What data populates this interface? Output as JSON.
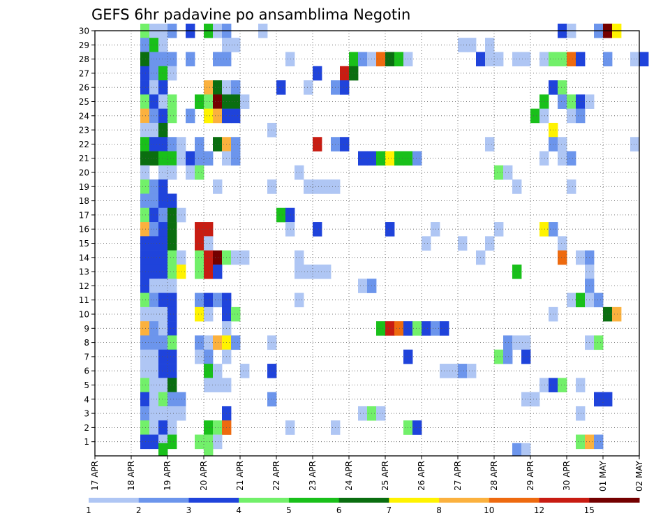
{
  "chart_data": {
    "type": "heatmap",
    "title": "GEFS 6hr padavine po ansamblima Negotin",
    "xlabel": "",
    "ylabel": "",
    "x_tick_labels": [
      "17 APR",
      "18 APR",
      "19 APR",
      "20 APR",
      "21 APR",
      "22 APR",
      "23 APR",
      "24 APR",
      "25 APR",
      "26 APR",
      "27 APR",
      "28 APR",
      "29 APR",
      "30 APR",
      "01 MAY",
      "02 MAY"
    ],
    "y_tick_labels": [
      "1",
      "2",
      "3",
      "4",
      "5",
      "6",
      "7",
      "8",
      "9",
      "10",
      "11",
      "12",
      "13",
      "14",
      "15",
      "16",
      "17",
      "18",
      "19",
      "20",
      "21",
      "22",
      "23",
      "24",
      "25",
      "26",
      "27",
      "28",
      "29",
      "30"
    ],
    "xlim": [
      "17 APR 00Z",
      "02 MAY 00Z"
    ],
    "ylim": [
      0,
      30
    ],
    "grid": true,
    "legend": {
      "position": "bottom",
      "bounds": [
        1,
        2,
        3,
        4,
        5,
        6,
        7,
        8,
        10,
        12,
        15,
        20
      ],
      "colors": [
        "#afc6f4",
        "#6c95ec",
        "#1f43db",
        "#72f06a",
        "#19c01a",
        "#0a6e10",
        "#fff300",
        "#fbb13e",
        "#ee6a0f",
        "#c81c12",
        "#740000"
      ]
    },
    "cells": [
      [
        30,
        5,
        4
      ],
      [
        30,
        6,
        1
      ],
      [
        30,
        7,
        1
      ],
      [
        30,
        8,
        2
      ],
      [
        30,
        10,
        3
      ],
      [
        30,
        12,
        5
      ],
      [
        30,
        13,
        1
      ],
      [
        30,
        14,
        2
      ],
      [
        30,
        18,
        1
      ],
      [
        30,
        51,
        3
      ],
      [
        30,
        52,
        1
      ],
      [
        30,
        55,
        2
      ],
      [
        30,
        56,
        11
      ],
      [
        30,
        57,
        7
      ],
      [
        29,
        5,
        2
      ],
      [
        29,
        6,
        5
      ],
      [
        29,
        7,
        1
      ],
      [
        29,
        14,
        1
      ],
      [
        29,
        15,
        1
      ],
      [
        29,
        40,
        1
      ],
      [
        29,
        41,
        1
      ],
      [
        29,
        43,
        1
      ],
      [
        28,
        5,
        6
      ],
      [
        28,
        6,
        2
      ],
      [
        28,
        7,
        2
      ],
      [
        28,
        8,
        2
      ],
      [
        28,
        10,
        2
      ],
      [
        28,
        13,
        2
      ],
      [
        28,
        14,
        2
      ],
      [
        28,
        21,
        1
      ],
      [
        28,
        28,
        5
      ],
      [
        28,
        29,
        2
      ],
      [
        28,
        30,
        1
      ],
      [
        28,
        31,
        9
      ],
      [
        28,
        32,
        6
      ],
      [
        28,
        33,
        5
      ],
      [
        28,
        34,
        1
      ],
      [
        28,
        42,
        3
      ],
      [
        28,
        43,
        1
      ],
      [
        28,
        44,
        1
      ],
      [
        28,
        46,
        1
      ],
      [
        28,
        47,
        1
      ],
      [
        28,
        49,
        1
      ],
      [
        28,
        50,
        4
      ],
      [
        28,
        51,
        4
      ],
      [
        28,
        52,
        9
      ],
      [
        28,
        53,
        3
      ],
      [
        28,
        56,
        2
      ],
      [
        28,
        59,
        1
      ],
      [
        28,
        60,
        3
      ],
      [
        27,
        5,
        3
      ],
      [
        27,
        6,
        2
      ],
      [
        27,
        7,
        5
      ],
      [
        27,
        8,
        1
      ],
      [
        27,
        24,
        3
      ],
      [
        27,
        27,
        10
      ],
      [
        27,
        28,
        6
      ],
      [
        26,
        5,
        3
      ],
      [
        26,
        6,
        1
      ],
      [
        26,
        7,
        3
      ],
      [
        26,
        12,
        8
      ],
      [
        26,
        13,
        6
      ],
      [
        26,
        14,
        1
      ],
      [
        26,
        15,
        2
      ],
      [
        26,
        20,
        3
      ],
      [
        26,
        23,
        1
      ],
      [
        26,
        26,
        2
      ],
      [
        26,
        27,
        3
      ],
      [
        26,
        50,
        3
      ],
      [
        26,
        51,
        4
      ],
      [
        25,
        5,
        4
      ],
      [
        25,
        6,
        3
      ],
      [
        25,
        7,
        1
      ],
      [
        25,
        8,
        4
      ],
      [
        25,
        11,
        5
      ],
      [
        25,
        12,
        4
      ],
      [
        25,
        13,
        11
      ],
      [
        25,
        14,
        6
      ],
      [
        25,
        15,
        6
      ],
      [
        25,
        16,
        1
      ],
      [
        25,
        49,
        5
      ],
      [
        25,
        51,
        2
      ],
      [
        25,
        52,
        4
      ],
      [
        25,
        53,
        3
      ],
      [
        25,
        54,
        1
      ],
      [
        24,
        5,
        8
      ],
      [
        24,
        6,
        2
      ],
      [
        24,
        7,
        3
      ],
      [
        24,
        8,
        4
      ],
      [
        24,
        10,
        2
      ],
      [
        24,
        12,
        7
      ],
      [
        24,
        13,
        8
      ],
      [
        24,
        14,
        3
      ],
      [
        24,
        15,
        3
      ],
      [
        24,
        48,
        5
      ],
      [
        24,
        49,
        1
      ],
      [
        24,
        52,
        1
      ],
      [
        24,
        53,
        2
      ],
      [
        23,
        5,
        1
      ],
      [
        23,
        6,
        1
      ],
      [
        23,
        7,
        6
      ],
      [
        23,
        19,
        1
      ],
      [
        23,
        50,
        7
      ],
      [
        22,
        5,
        5
      ],
      [
        22,
        6,
        3
      ],
      [
        22,
        7,
        3
      ],
      [
        22,
        8,
        2
      ],
      [
        22,
        9,
        1
      ],
      [
        22,
        11,
        2
      ],
      [
        22,
        13,
        6
      ],
      [
        22,
        14,
        8
      ],
      [
        22,
        15,
        2
      ],
      [
        22,
        24,
        10
      ],
      [
        22,
        26,
        2
      ],
      [
        22,
        27,
        3
      ],
      [
        22,
        43,
        1
      ],
      [
        22,
        50,
        2
      ],
      [
        22,
        51,
        1
      ],
      [
        22,
        59,
        1
      ],
      [
        21,
        5,
        6
      ],
      [
        21,
        6,
        6
      ],
      [
        21,
        7,
        5
      ],
      [
        21,
        8,
        5
      ],
      [
        21,
        9,
        1
      ],
      [
        21,
        10,
        3
      ],
      [
        21,
        11,
        2
      ],
      [
        21,
        12,
        2
      ],
      [
        21,
        14,
        1
      ],
      [
        21,
        15,
        2
      ],
      [
        21,
        29,
        3
      ],
      [
        21,
        30,
        3
      ],
      [
        21,
        31,
        5
      ],
      [
        21,
        32,
        7
      ],
      [
        21,
        33,
        5
      ],
      [
        21,
        34,
        5
      ],
      [
        21,
        35,
        2
      ],
      [
        21,
        49,
        1
      ],
      [
        21,
        51,
        1
      ],
      [
        21,
        52,
        2
      ],
      [
        20,
        5,
        1
      ],
      [
        20,
        7,
        1
      ],
      [
        20,
        8,
        1
      ],
      [
        20,
        10,
        1
      ],
      [
        20,
        11,
        4
      ],
      [
        20,
        22,
        1
      ],
      [
        20,
        44,
        4
      ],
      [
        20,
        45,
        1
      ],
      [
        19,
        5,
        4
      ],
      [
        19,
        6,
        2
      ],
      [
        19,
        7,
        3
      ],
      [
        19,
        13,
        1
      ],
      [
        19,
        19,
        1
      ],
      [
        19,
        23,
        1
      ],
      [
        19,
        24,
        1
      ],
      [
        19,
        25,
        1
      ],
      [
        19,
        26,
        1
      ],
      [
        19,
        46,
        1
      ],
      [
        19,
        52,
        1
      ],
      [
        18,
        5,
        2
      ],
      [
        18,
        6,
        2
      ],
      [
        18,
        7,
        3
      ],
      [
        18,
        8,
        3
      ],
      [
        17,
        5,
        4
      ],
      [
        17,
        6,
        3
      ],
      [
        17,
        7,
        2
      ],
      [
        17,
        8,
        6
      ],
      [
        17,
        9,
        1
      ],
      [
        17,
        20,
        5
      ],
      [
        17,
        21,
        3
      ],
      [
        16,
        5,
        8
      ],
      [
        16,
        6,
        2
      ],
      [
        16,
        7,
        3
      ],
      [
        16,
        8,
        6
      ],
      [
        16,
        11,
        10
      ],
      [
        16,
        12,
        10
      ],
      [
        16,
        21,
        1
      ],
      [
        16,
        24,
        3
      ],
      [
        16,
        32,
        3
      ],
      [
        16,
        37,
        1
      ],
      [
        16,
        44,
        1
      ],
      [
        16,
        49,
        7
      ],
      [
        16,
        50,
        2
      ],
      [
        15,
        5,
        3
      ],
      [
        15,
        6,
        3
      ],
      [
        15,
        7,
        3
      ],
      [
        15,
        8,
        6
      ],
      [
        15,
        11,
        10
      ],
      [
        15,
        12,
        1
      ],
      [
        15,
        36,
        1
      ],
      [
        15,
        40,
        1
      ],
      [
        15,
        43,
        1
      ],
      [
        15,
        51,
        1
      ],
      [
        14,
        5,
        3
      ],
      [
        14,
        6,
        3
      ],
      [
        14,
        7,
        3
      ],
      [
        14,
        8,
        4
      ],
      [
        14,
        9,
        1
      ],
      [
        14,
        11,
        4
      ],
      [
        14,
        12,
        10
      ],
      [
        14,
        13,
        11
      ],
      [
        14,
        14,
        4
      ],
      [
        14,
        15,
        1
      ],
      [
        14,
        16,
        1
      ],
      [
        14,
        22,
        1
      ],
      [
        14,
        42,
        1
      ],
      [
        14,
        51,
        9
      ],
      [
        14,
        53,
        1
      ],
      [
        14,
        54,
        2
      ],
      [
        13,
        5,
        3
      ],
      [
        13,
        6,
        3
      ],
      [
        13,
        7,
        3
      ],
      [
        13,
        8,
        4
      ],
      [
        13,
        9,
        7
      ],
      [
        13,
        11,
        4
      ],
      [
        13,
        12,
        10
      ],
      [
        13,
        13,
        3
      ],
      [
        13,
        22,
        1
      ],
      [
        13,
        23,
        1
      ],
      [
        13,
        24,
        1
      ],
      [
        13,
        25,
        1
      ],
      [
        13,
        46,
        5
      ],
      [
        13,
        54,
        1
      ],
      [
        12,
        5,
        3
      ],
      [
        12,
        6,
        1
      ],
      [
        12,
        7,
        1
      ],
      [
        12,
        8,
        1
      ],
      [
        12,
        29,
        1
      ],
      [
        12,
        30,
        2
      ],
      [
        12,
        54,
        2
      ],
      [
        11,
        5,
        4
      ],
      [
        11,
        6,
        2
      ],
      [
        11,
        7,
        3
      ],
      [
        11,
        8,
        3
      ],
      [
        11,
        11,
        2
      ],
      [
        11,
        12,
        3
      ],
      [
        11,
        13,
        2
      ],
      [
        11,
        14,
        3
      ],
      [
        11,
        22,
        1
      ],
      [
        11,
        52,
        1
      ],
      [
        11,
        53,
        5
      ],
      [
        11,
        54,
        1
      ],
      [
        11,
        55,
        2
      ],
      [
        10,
        5,
        1
      ],
      [
        10,
        6,
        1
      ],
      [
        10,
        7,
        1
      ],
      [
        10,
        8,
        3
      ],
      [
        10,
        11,
        7
      ],
      [
        10,
        12,
        1
      ],
      [
        10,
        14,
        3
      ],
      [
        10,
        15,
        4
      ],
      [
        10,
        50,
        1
      ],
      [
        10,
        56,
        6
      ],
      [
        10,
        57,
        8
      ],
      [
        9,
        5,
        8
      ],
      [
        9,
        6,
        2
      ],
      [
        9,
        7,
        1
      ],
      [
        9,
        8,
        3
      ],
      [
        9,
        14,
        1
      ],
      [
        9,
        31,
        5
      ],
      [
        9,
        32,
        10
      ],
      [
        9,
        33,
        9
      ],
      [
        9,
        34,
        3
      ],
      [
        9,
        35,
        4
      ],
      [
        9,
        36,
        3
      ],
      [
        9,
        37,
        2
      ],
      [
        9,
        38,
        3
      ],
      [
        8,
        5,
        2
      ],
      [
        8,
        6,
        2
      ],
      [
        8,
        7,
        2
      ],
      [
        8,
        8,
        4
      ],
      [
        8,
        11,
        2
      ],
      [
        8,
        12,
        1
      ],
      [
        8,
        13,
        8
      ],
      [
        8,
        14,
        7
      ],
      [
        8,
        15,
        2
      ],
      [
        8,
        19,
        1
      ],
      [
        8,
        45,
        2
      ],
      [
        8,
        46,
        1
      ],
      [
        8,
        47,
        1
      ],
      [
        8,
        54,
        1
      ],
      [
        8,
        55,
        4
      ],
      [
        7,
        5,
        1
      ],
      [
        7,
        6,
        1
      ],
      [
        7,
        7,
        3
      ],
      [
        7,
        8,
        3
      ],
      [
        7,
        11,
        1
      ],
      [
        7,
        12,
        2
      ],
      [
        7,
        14,
        1
      ],
      [
        7,
        34,
        3
      ],
      [
        7,
        44,
        4
      ],
      [
        7,
        45,
        2
      ],
      [
        7,
        47,
        3
      ],
      [
        6,
        5,
        1
      ],
      [
        6,
        6,
        1
      ],
      [
        6,
        7,
        3
      ],
      [
        6,
        8,
        3
      ],
      [
        6,
        12,
        5
      ],
      [
        6,
        13,
        1
      ],
      [
        6,
        16,
        1
      ],
      [
        6,
        19,
        3
      ],
      [
        6,
        38,
        1
      ],
      [
        6,
        39,
        1
      ],
      [
        6,
        40,
        2
      ],
      [
        6,
        41,
        1
      ],
      [
        5,
        5,
        4
      ],
      [
        5,
        6,
        1
      ],
      [
        5,
        7,
        1
      ],
      [
        5,
        8,
        6
      ],
      [
        5,
        12,
        1
      ],
      [
        5,
        13,
        1
      ],
      [
        5,
        14,
        1
      ],
      [
        5,
        49,
        1
      ],
      [
        5,
        50,
        3
      ],
      [
        5,
        51,
        4
      ],
      [
        5,
        53,
        1
      ],
      [
        4,
        5,
        3
      ],
      [
        4,
        6,
        1
      ],
      [
        4,
        7,
        4
      ],
      [
        4,
        8,
        2
      ],
      [
        4,
        9,
        2
      ],
      [
        4,
        19,
        2
      ],
      [
        4,
        47,
        1
      ],
      [
        4,
        48,
        1
      ],
      [
        4,
        55,
        3
      ],
      [
        4,
        56,
        3
      ],
      [
        3,
        5,
        2
      ],
      [
        3,
        6,
        1
      ],
      [
        3,
        7,
        1
      ],
      [
        3,
        8,
        1
      ],
      [
        3,
        9,
        1
      ],
      [
        3,
        14,
        3
      ],
      [
        3,
        29,
        1
      ],
      [
        3,
        30,
        4
      ],
      [
        3,
        31,
        1
      ],
      [
        3,
        53,
        1
      ],
      [
        2,
        5,
        4
      ],
      [
        2,
        6,
        1
      ],
      [
        2,
        7,
        3
      ],
      [
        2,
        8,
        1
      ],
      [
        2,
        12,
        5
      ],
      [
        2,
        13,
        4
      ],
      [
        2,
        14,
        9
      ],
      [
        2,
        21,
        1
      ],
      [
        2,
        26,
        1
      ],
      [
        2,
        34,
        4
      ],
      [
        2,
        35,
        3
      ],
      [
        1,
        5,
        3
      ],
      [
        1,
        6,
        3
      ],
      [
        1,
        7,
        1
      ],
      [
        1,
        8,
        5
      ],
      [
        1,
        11,
        4
      ],
      [
        1,
        12,
        4
      ],
      [
        1,
        13,
        1
      ],
      [
        1,
        53,
        4
      ],
      [
        1,
        54,
        8
      ],
      [
        1,
        55,
        2
      ],
      [
        0.4,
        7,
        5
      ],
      [
        0.4,
        12,
        4
      ],
      [
        0.4,
        46,
        2
      ],
      [
        0.4,
        47,
        1
      ]
    ]
  }
}
